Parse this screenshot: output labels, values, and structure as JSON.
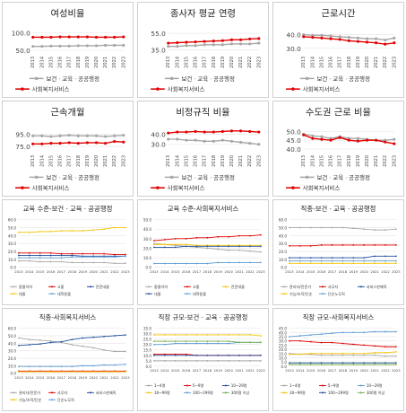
{
  "chart_data": [
    {
      "type": "line",
      "title": "여성비율",
      "yticks": [
        50.0,
        100.0
      ],
      "ylim": [
        40,
        110
      ],
      "x": [
        "2013",
        "2014",
        "2015",
        "2016",
        "2017",
        "2018",
        "2019",
        "2020",
        "2021",
        "2022",
        "2023"
      ],
      "series": [
        {
          "name": "보건ㆍ교육ㆍ공공행정",
          "color": "#a6a6a6",
          "values": [
            61,
            61,
            62,
            62,
            62,
            63,
            63,
            63,
            64,
            64,
            64
          ]
        },
        {
          "name": "사회복지서비스",
          "color": "#e00000",
          "values": [
            87,
            87,
            87,
            88,
            88,
            88,
            88,
            87,
            87,
            87,
            88
          ]
        }
      ]
    },
    {
      "type": "line",
      "title": "종사자 평균 연령",
      "yticks": [
        35.0,
        55.0
      ],
      "ylim": [
        30,
        60
      ],
      "x": [
        "2013",
        "2014",
        "2015",
        "2016",
        "2017",
        "2018",
        "2019",
        "2020",
        "2021",
        "2022",
        "2023"
      ],
      "series": [
        {
          "name": "보건ㆍ교육ㆍ공공행정",
          "color": "#a6a6a6",
          "values": [
            39,
            39,
            40,
            40,
            41,
            41,
            41,
            42,
            42,
            42,
            43
          ]
        },
        {
          "name": "사회복지서비스",
          "color": "#e00000",
          "values": [
            43,
            43.5,
            44,
            44.5,
            45,
            45.5,
            46,
            47,
            47,
            48,
            48.5
          ]
        }
      ]
    },
    {
      "type": "line",
      "title": "근로시간",
      "yticks": [
        30.0,
        40.0
      ],
      "ylim": [
        26,
        44
      ],
      "x": [
        "2013",
        "2014",
        "2015",
        "2016",
        "2017",
        "2018",
        "2019",
        "2020",
        "2021",
        "2022",
        "2023"
      ],
      "series": [
        {
          "name": "보건ㆍ교육ㆍ공공행정",
          "color": "#a6a6a6",
          "values": [
            40,
            39.5,
            39.5,
            39,
            38.5,
            38,
            37.5,
            37,
            37,
            36,
            37.5
          ]
        },
        {
          "name": "사회복지서비스",
          "color": "#e00000",
          "values": [
            38.5,
            38,
            37.5,
            37,
            36.5,
            35.5,
            35,
            34.5,
            34,
            33,
            34
          ]
        }
      ]
    },
    {
      "type": "line",
      "title": "근속개월",
      "yticks": [
        75.0,
        95.0
      ],
      "ylim": [
        65,
        105
      ],
      "x": [
        "2013",
        "2014",
        "2015",
        "2016",
        "2017",
        "2018",
        "2019",
        "2020",
        "2021",
        "2022",
        "2023"
      ],
      "series": [
        {
          "name": "보건ㆍ교육ㆍ공공행정",
          "color": "#a6a6a6",
          "values": [
            92,
            92,
            91,
            92,
            93,
            92,
            92,
            92,
            91,
            92,
            93
          ]
        },
        {
          "name": "사회복지서비스",
          "color": "#e00000",
          "values": [
            79,
            79,
            80,
            80,
            81,
            80,
            81,
            81,
            80,
            83,
            82
          ]
        }
      ]
    },
    {
      "type": "line",
      "title": "비정규직 비율",
      "yticks": [
        30.0,
        40.0
      ],
      "ylim": [
        22,
        46
      ],
      "x": [
        "2013",
        "2014",
        "2015",
        "2016",
        "2017",
        "2018",
        "2019",
        "2020",
        "2021",
        "2022",
        "2023"
      ],
      "series": [
        {
          "name": "보건ㆍ교육ㆍ공공행정",
          "color": "#a6a6a6",
          "values": [
            35,
            35,
            34,
            34,
            33,
            33,
            34,
            33,
            32,
            31,
            30
          ]
        },
        {
          "name": "사회복지서비스",
          "color": "#e00000",
          "values": [
            41,
            42,
            42,
            42.5,
            42,
            42,
            42.5,
            43,
            43,
            42.5,
            42
          ]
        }
      ]
    },
    {
      "type": "line",
      "title": "수도권 근로 비율",
      "yticks": [
        40.0,
        45.0,
        50.0
      ],
      "ylim": [
        38,
        52
      ],
      "x": [
        "2013",
        "2014",
        "2015",
        "2016",
        "2017",
        "2018",
        "2019",
        "2020",
        "2021",
        "2022",
        "2023"
      ],
      "series": [
        {
          "name": "보건ㆍ교육ㆍ공공행정",
          "color": "#a6a6a6",
          "values": [
            48.5,
            47.5,
            47,
            46,
            47,
            46,
            46,
            45.5,
            45,
            45,
            45.5
          ]
        },
        {
          "name": "사회복지서비스",
          "color": "#e00000",
          "values": [
            48,
            46,
            45.5,
            45,
            46.5,
            45,
            44.5,
            45,
            45,
            44,
            43
          ]
        }
      ]
    },
    {
      "type": "line",
      "title": "교육 수준-보건ㆍ교육ㆍ공공행정",
      "yticks": [
        0.0,
        10.0,
        20.0,
        30.0,
        40.0,
        50.0,
        60.0
      ],
      "ylim": [
        0,
        60
      ],
      "x": [
        "2013",
        "2014",
        "2015",
        "2016",
        "2017",
        "2018",
        "2019",
        "2020",
        "2021",
        "2022",
        "2023"
      ],
      "series": [
        {
          "name": "중졸이하",
          "color": "#a6a6a6",
          "values": [
            8,
            8,
            7,
            7,
            7,
            6,
            6,
            6,
            6,
            5,
            5
          ]
        },
        {
          "name": "고졸",
          "color": "#e00000",
          "values": [
            18,
            18,
            18,
            18,
            17,
            17,
            17,
            17,
            17,
            16,
            16
          ]
        },
        {
          "name": "전문대졸",
          "color": "#1f4e9c",
          "values": [
            15,
            15,
            15,
            15,
            15,
            15,
            14,
            14,
            14,
            14,
            14
          ]
        },
        {
          "name": "대졸",
          "color": "#f5c400",
          "values": [
            44,
            44,
            45,
            45,
            46,
            46,
            46,
            47,
            48,
            50,
            50
          ]
        },
        {
          "name": "대학원졸",
          "color": "#5b9bd5",
          "values": [
            12,
            12,
            12,
            12,
            12,
            13,
            13,
            13,
            13,
            13,
            14
          ]
        }
      ]
    },
    {
      "type": "line",
      "title": "교육 수준-사회복지서비스",
      "yticks": [
        0.0,
        10.0,
        20.0,
        30.0,
        40.0,
        50.0
      ],
      "ylim": [
        0,
        50
      ],
      "x": [
        "2013",
        "2014",
        "2015",
        "2016",
        "2017",
        "2018",
        "2019",
        "2020",
        "2021",
        "2022",
        "2023"
      ],
      "series": [
        {
          "name": "중졸이하",
          "color": "#a6a6a6",
          "values": [
            25,
            24,
            23,
            22,
            21,
            20,
            19,
            18,
            18,
            17,
            16
          ]
        },
        {
          "name": "고졸",
          "color": "#e00000",
          "values": [
            28,
            29,
            30,
            30,
            31,
            31,
            32,
            32,
            33,
            33,
            34
          ]
        },
        {
          "name": "전문대졸",
          "color": "#f5c400",
          "values": [
            24,
            24,
            24,
            24,
            23,
            23,
            23,
            23,
            23,
            23,
            23
          ]
        },
        {
          "name": "대졸",
          "color": "#1f4e9c",
          "values": [
            21,
            21,
            21,
            22,
            22,
            22,
            22,
            22,
            22,
            22,
            22
          ]
        },
        {
          "name": "대학원졸",
          "color": "#5b9bd5",
          "values": [
            4,
            4,
            4,
            4,
            4,
            4,
            5,
            5,
            5,
            5,
            5
          ]
        }
      ]
    },
    {
      "type": "line",
      "title": "직종-보건ㆍ교육ㆍ공공행정",
      "yticks": [
        0.0,
        10.0,
        20.0,
        30.0,
        40.0,
        50.0,
        60.0
      ],
      "ylim": [
        0,
        60
      ],
      "x": [
        "2013",
        "2014",
        "2015",
        "2016",
        "2017",
        "2018",
        "2019",
        "2020",
        "2021",
        "2022",
        "2023"
      ],
      "series": [
        {
          "name": "관리자/전문가",
          "color": "#a6a6a6",
          "values": [
            50,
            50,
            50,
            50,
            50,
            50,
            49,
            48,
            47,
            47,
            48
          ]
        },
        {
          "name": "사무자",
          "color": "#e00000",
          "values": [
            27,
            27,
            27,
            28,
            28,
            28,
            28,
            28,
            28,
            28,
            28
          ]
        },
        {
          "name": "서비스판매직",
          "color": "#1f4e9c",
          "values": [
            12,
            12,
            12,
            12,
            12,
            12,
            12,
            12,
            14,
            14,
            14
          ]
        },
        {
          "name": "기능/조작/단순",
          "color": "#f5c400",
          "values": [
            5,
            5,
            5,
            5,
            5,
            5,
            5,
            5,
            5,
            5,
            5
          ]
        },
        {
          "name": "단순노무직",
          "color": "#5b9bd5",
          "values": [
            8,
            8,
            8,
            8,
            8,
            8,
            8,
            8,
            8,
            8,
            8
          ]
        }
      ]
    },
    {
      "type": "line",
      "title": "직종-사회복지서비스",
      "yticks": [
        0.0,
        10.0,
        20.0,
        30.0,
        40.0,
        50.0,
        60.0
      ],
      "ylim": [
        0,
        60
      ],
      "x": [
        "2013",
        "2014",
        "2015",
        "2016",
        "2017",
        "2018",
        "2019",
        "2020",
        "2021",
        "2022",
        "2023"
      ],
      "series": [
        {
          "name": "관리자/전문가",
          "color": "#a6a6a6",
          "values": [
            47,
            45,
            44,
            43,
            41,
            38,
            36,
            34,
            31,
            29,
            29
          ]
        },
        {
          "name": "사무자",
          "color": "#e00000",
          "values": [
            3,
            3,
            3,
            3,
            3,
            3,
            3,
            3,
            3,
            3,
            3
          ]
        },
        {
          "name": "서비스판매직",
          "color": "#1f4e9c",
          "values": [
            37,
            38,
            39,
            41,
            42,
            45,
            47,
            48,
            49,
            50,
            51
          ]
        },
        {
          "name": "기능/조작/단순",
          "color": "#f5c400",
          "values": [
            2,
            2,
            2,
            2,
            2,
            2,
            2,
            2,
            2,
            2,
            2
          ]
        },
        {
          "name": "단순노무직",
          "color": "#5b9bd5",
          "values": [
            9,
            9,
            9,
            9,
            9,
            9,
            10,
            10,
            11,
            11,
            12
          ]
        }
      ]
    },
    {
      "type": "line",
      "title": "직장 규모-보건ㆍ교육ㆍ공공행정",
      "yticks": [
        0.0,
        5.0,
        10.0,
        15.0,
        20.0,
        25.0,
        30.0,
        35.0
      ],
      "ylim": [
        0,
        35
      ],
      "x": [
        "2013",
        "2014",
        "2015",
        "2016",
        "2017",
        "2018",
        "2019",
        "2020",
        "2021",
        "2022",
        "2023"
      ],
      "series": [
        {
          "name": "1~4명",
          "color": "#a6a6a6",
          "values": [
            5,
            5,
            5,
            5,
            5,
            5,
            5,
            5,
            5,
            5,
            5
          ]
        },
        {
          "name": "5~9명",
          "color": "#e00000",
          "values": [
            11,
            11,
            11,
            11,
            10,
            10,
            10,
            10,
            10,
            10,
            10
          ]
        },
        {
          "name": "10~29명",
          "color": "#1f4e9c",
          "values": [
            10,
            10,
            10,
            10,
            10,
            10,
            10,
            10,
            10,
            10,
            10
          ]
        },
        {
          "name": "30~99명",
          "color": "#f5c400",
          "values": [
            29,
            29,
            29,
            29,
            29,
            29,
            29,
            29,
            29,
            29,
            28
          ]
        },
        {
          "name": "100~299명",
          "color": "#5b9bd5",
          "values": [
            20,
            20,
            21,
            21,
            21,
            21,
            21,
            21,
            22,
            22,
            22
          ]
        },
        {
          "name": "300명 이상",
          "color": "#70ad47",
          "values": [
            23,
            23,
            23,
            23,
            23,
            23,
            23,
            23,
            22,
            22,
            22
          ]
        }
      ]
    },
    {
      "type": "line",
      "title": "직장 규모-사회복지서비스",
      "yticks": [
        0.0,
        5.0,
        10.0,
        15.0,
        20.0,
        25.0,
        30.0,
        35.0,
        40.0,
        45.0
      ],
      "ylim": [
        0,
        45
      ],
      "x": [
        "2013",
        "2014",
        "2015",
        "2016",
        "2017",
        "2018",
        "2019",
        "2020",
        "2021",
        "2022",
        "2023"
      ],
      "series": [
        {
          "name": "1~4명",
          "color": "#a6a6a6",
          "values": [
            15,
            14,
            14,
            13,
            13,
            13,
            13,
            13,
            13,
            12,
            12
          ]
        },
        {
          "name": "5~9명",
          "color": "#e00000",
          "values": [
            30,
            30,
            29,
            28,
            28,
            27,
            26,
            25,
            24,
            23,
            23
          ]
        },
        {
          "name": "10~29명",
          "color": "#5b9bd5",
          "values": [
            35,
            36,
            37,
            38,
            39,
            40,
            40,
            40,
            41,
            41,
            41
          ]
        },
        {
          "name": "30~99명",
          "color": "#f5c400",
          "values": [
            14,
            14,
            15,
            15,
            15,
            15,
            15,
            15,
            16,
            16,
            17
          ]
        },
        {
          "name": "100~299명",
          "color": "#1f4e9c",
          "values": [
            4,
            4,
            4,
            4,
            4,
            4,
            4,
            4,
            4,
            4,
            4
          ]
        },
        {
          "name": "300명 이상",
          "color": "#70ad47",
          "values": [
            2,
            2,
            2,
            2,
            2,
            2,
            2,
            2,
            2,
            2,
            2
          ]
        }
      ]
    }
  ]
}
